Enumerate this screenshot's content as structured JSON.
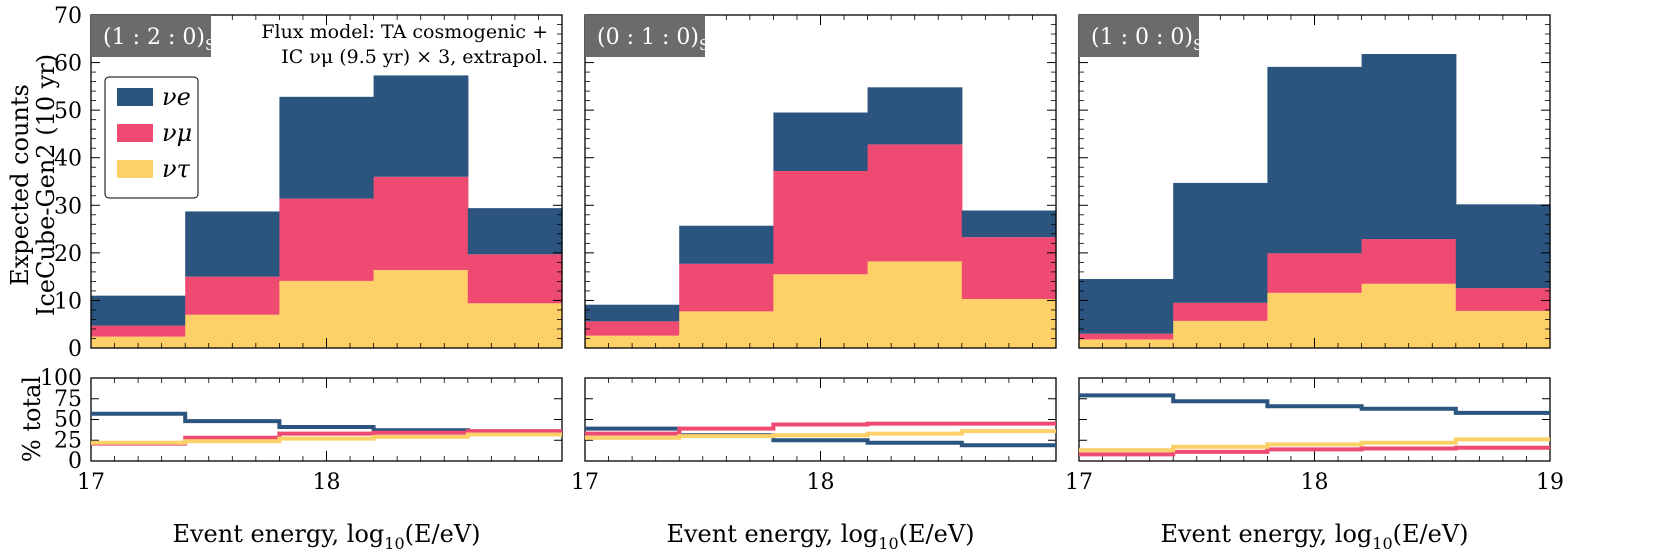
{
  "colors": {
    "nu_e": "#2b547e",
    "nu_mu": "#ee4a72",
    "nu_tau": "#fdd068",
    "badge": "#6b6b6b"
  },
  "chart_data": [
    {
      "type": "bar",
      "panel_label": "(1 : 2 : 0)",
      "panel_label_sub": "S",
      "annotation_line1": "Flux model: TA cosmogenic +",
      "annotation_line2": "IC νμ (9.5 yr) × 3, extrapol.",
      "bin_edges": [
        17.0,
        17.4,
        17.8,
        18.2,
        18.6,
        19.0
      ],
      "series": [
        {
          "name": "νe",
          "values": [
            6.3,
            13.7,
            21.4,
            21.3,
            9.7
          ]
        },
        {
          "name": "νμ",
          "values": [
            2.3,
            8.0,
            17.3,
            19.6,
            10.3
          ]
        },
        {
          "name": "ντ",
          "values": [
            2.4,
            7.0,
            14.1,
            16.4,
            9.4
          ]
        }
      ],
      "percent": {
        "nu_e": [
          57,
          48,
          41,
          37,
          34
        ],
        "nu_mu": [
          21,
          28,
          33,
          34,
          36
        ],
        "nu_tau": [
          22,
          24,
          27,
          29,
          32
        ]
      }
    },
    {
      "type": "bar",
      "panel_label": "(0 : 1 : 0)",
      "panel_label_sub": "S",
      "bin_edges": [
        17.0,
        17.4,
        17.8,
        18.2,
        18.6,
        19.0
      ],
      "series": [
        {
          "name": "νe",
          "values": [
            3.5,
            8.0,
            12.3,
            12.0,
            5.6
          ]
        },
        {
          "name": "νμ",
          "values": [
            3.0,
            10.0,
            21.7,
            24.6,
            13.0
          ]
        },
        {
          "name": "ντ",
          "values": [
            2.6,
            7.7,
            15.5,
            18.2,
            10.3
          ]
        }
      ],
      "percent": {
        "nu_e": [
          39,
          31,
          25,
          22,
          19
        ],
        "nu_mu": [
          33,
          39,
          44,
          45,
          45
        ],
        "nu_tau": [
          28,
          30,
          31,
          33,
          36
        ]
      }
    },
    {
      "type": "bar",
      "panel_label": "(1 : 0 : 0)",
      "panel_label_sub": "S",
      "bin_edges": [
        17.0,
        17.4,
        17.8,
        18.2,
        18.6,
        19.0
      ],
      "series": [
        {
          "name": "νe",
          "values": [
            11.5,
            25.2,
            39.2,
            38.9,
            17.6
          ]
        },
        {
          "name": "νμ",
          "values": [
            1.2,
            3.8,
            8.3,
            9.4,
            4.8
          ]
        },
        {
          "name": "ντ",
          "values": [
            1.8,
            5.7,
            11.6,
            13.5,
            7.8
          ]
        }
      ],
      "percent": {
        "nu_e": [
          79,
          72,
          66,
          63,
          58
        ],
        "nu_mu": [
          8,
          11,
          14,
          15,
          16
        ],
        "nu_tau": [
          13,
          17,
          20,
          22,
          26
        ]
      }
    }
  ],
  "axes": {
    "ylabel_top_line1": "Expected counts",
    "ylabel_top_line2": "IceCube-Gen2 (10 yr)",
    "ylabel_bottom": "% total",
    "xlabel_prefix": "Event energy, log",
    "xlabel_sub": "10",
    "xlabel_suffix": "(E/eV)",
    "y_ticks_top": [
      "0",
      "10",
      "20",
      "30",
      "40",
      "50",
      "60",
      "70"
    ],
    "y_ticks_bottom": [
      "0",
      "25",
      "50",
      "75",
      "100"
    ],
    "x_ticks_panels_1_2": [
      "17",
      "18"
    ],
    "x_ticks_panel_3": [
      "17",
      "18",
      "19"
    ],
    "ylim_top": [
      0,
      70
    ],
    "ylim_bottom": [
      0,
      100
    ],
    "xlim": [
      17,
      19
    ]
  },
  "legend": {
    "items": [
      {
        "key": "nu_e",
        "label": "νe"
      },
      {
        "key": "nu_mu",
        "label": "νμ"
      },
      {
        "key": "nu_tau",
        "label": "ντ"
      }
    ]
  }
}
